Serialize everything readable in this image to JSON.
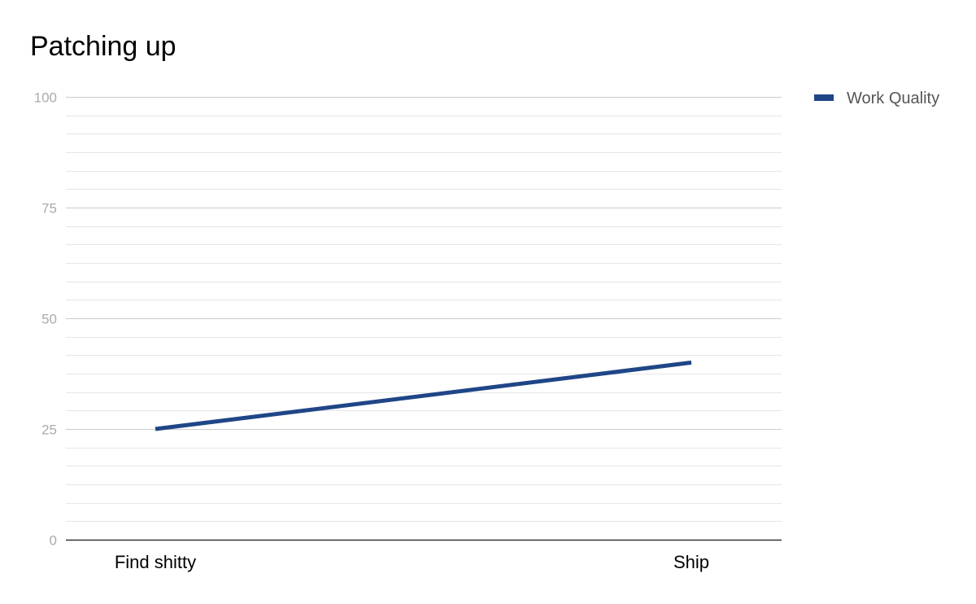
{
  "chart_data": {
    "type": "line",
    "title": "Patching up",
    "xlabel": "",
    "ylabel": "",
    "categories": [
      "Find shitty",
      "Ship"
    ],
    "series": [
      {
        "name": "Work Quality",
        "values": [
          25,
          40
        ]
      }
    ],
    "ylim": [
      0,
      100
    ],
    "yticks": [
      0,
      25,
      50,
      75,
      100
    ],
    "minor_gridlines_per_interval": 5,
    "grid": true,
    "legend_position": "right",
    "colors": {
      "series": "#1f4687",
      "major_grid": "#cccccc",
      "minor_grid": "#e6e6e6",
      "baseline": "#333333",
      "y_tick_label": "#aaaaaa",
      "x_tick_label": "#000000",
      "legend_label": "#555555"
    }
  }
}
